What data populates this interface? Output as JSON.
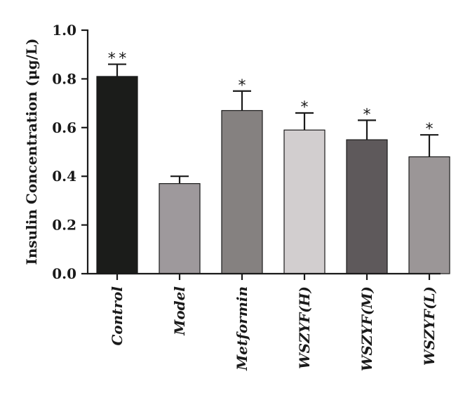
{
  "chart_data": {
    "type": "bar",
    "title": "",
    "xlabel": "",
    "ylabel": "Insulin Concentration (μg/L)",
    "ylim": [
      0,
      1.0
    ],
    "yticks": [
      "0.0",
      "0.2",
      "0.4",
      "0.6",
      "0.8",
      "1.0"
    ],
    "ytick_values": [
      0,
      0.2,
      0.4,
      0.6,
      0.8,
      1.0
    ],
    "grid": false,
    "categories": [
      "Control",
      "Model",
      "Metformin",
      "WSZYF(H)",
      "WSZYF(M)",
      "WSZYF(L)"
    ],
    "values": [
      0.81,
      0.37,
      0.67,
      0.59,
      0.55,
      0.48
    ],
    "error_upper": [
      0.86,
      0.4,
      0.75,
      0.66,
      0.63,
      0.57
    ],
    "significance": [
      "**",
      "",
      "*",
      "*",
      "*",
      "*"
    ],
    "colors": [
      "#1b1c1a",
      "#9e999c",
      "#858180",
      "#d2cecf",
      "#5e595b",
      "#9b9697"
    ]
  }
}
